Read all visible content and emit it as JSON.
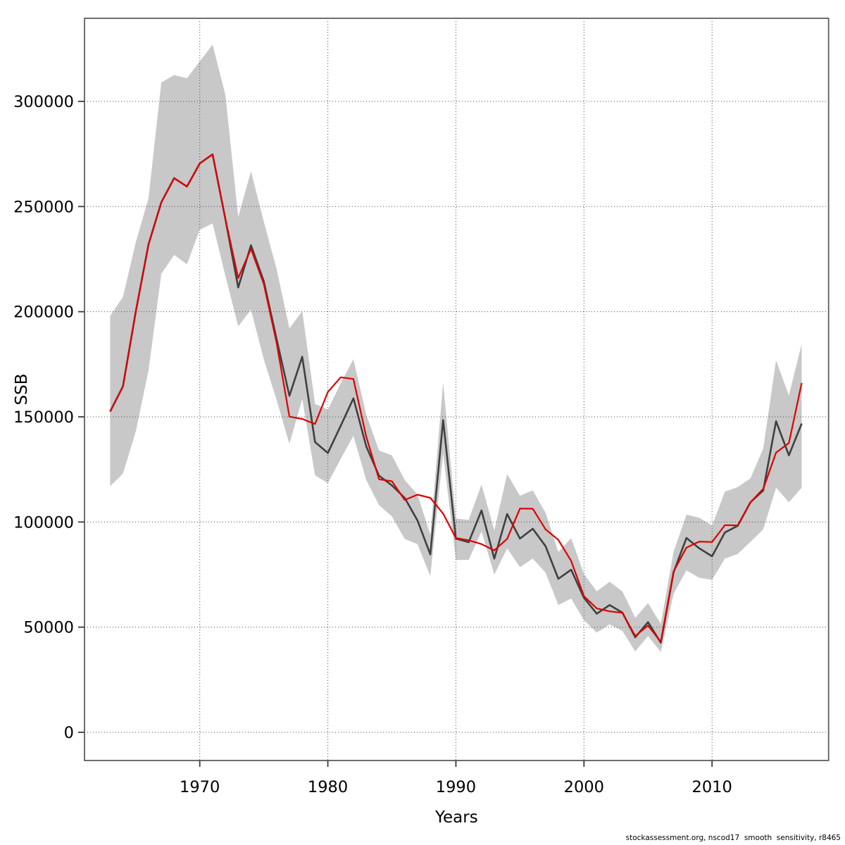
{
  "page": {
    "background": "#ffffff"
  },
  "footer": {
    "text": "stockassessment.org, nscod17  smooth  sensitivity, r8465"
  },
  "chart_data": {
    "type": "line",
    "title": "",
    "xlabel": "Years",
    "ylabel": "SSB",
    "grid": true,
    "legend": false,
    "xlim": [
      1961.0,
      2019.1
    ],
    "ylim": [
      -13400,
      339500
    ],
    "x_ticks": [
      1970,
      1980,
      1990,
      2000,
      2010
    ],
    "y_ticks": [
      0,
      50000,
      100000,
      150000,
      200000,
      250000,
      300000
    ],
    "years": [
      1963,
      1964,
      1965,
      1966,
      1967,
      1968,
      1969,
      1970,
      1971,
      1972,
      1973,
      1974,
      1975,
      1976,
      1977,
      1978,
      1979,
      1980,
      1981,
      1982,
      1983,
      1984,
      1985,
      1986,
      1987,
      1988,
      1989,
      1990,
      1991,
      1992,
      1993,
      1994,
      1995,
      1996,
      1997,
      1998,
      1999,
      2000,
      2001,
      2002,
      2003,
      2004,
      2005,
      2006,
      2007,
      2008,
      2009,
      2010,
      2011,
      2012,
      2013,
      2014,
      2015,
      2016,
      2017
    ],
    "series": [
      {
        "id": "base-run",
        "color": "#404040",
        "width": 2.6,
        "values": [
          152500,
          164500,
          200000,
          232000,
          252000,
          263500,
          259500,
          270500,
          274800,
          244000,
          211500,
          231600,
          214500,
          187000,
          160000,
          178600,
          138000,
          132800,
          145700,
          158800,
          136000,
          122000,
          117400,
          111500,
          100700,
          84600,
          148500,
          92100,
          90400,
          105500,
          82600,
          103800,
          92100,
          96800,
          88500,
          73000,
          77300,
          63900,
          56400,
          60500,
          56900,
          45200,
          52400,
          42600,
          76100,
          92400,
          87500,
          83700,
          95000,
          98200,
          109400,
          115000,
          147900,
          131700,
          146800
        ]
      },
      {
        "id": "sensitivity-run",
        "color": "#e00000",
        "width": 2.2,
        "values": [
          152500,
          164500,
          200000,
          232000,
          252000,
          263500,
          259500,
          270500,
          274800,
          244000,
          216000,
          229900,
          213200,
          185200,
          150100,
          149000,
          146600,
          161800,
          168800,
          168000,
          140600,
          120300,
          119400,
          110500,
          113000,
          111500,
          104000,
          92400,
          91300,
          89500,
          86500,
          92000,
          106400,
          106300,
          96500,
          91500,
          81500,
          64700,
          58900,
          57500,
          56800,
          45800,
          50800,
          43000,
          76500,
          87800,
          90700,
          90500,
          98500,
          98400,
          109400,
          115800,
          133000,
          137500,
          166100
        ]
      }
    ],
    "band": {
      "id": "confidence-band",
      "color": "#c8c8c8",
      "lower": [
        117000,
        123000,
        143000,
        172000,
        218000,
        227000,
        222500,
        239000,
        242000,
        217000,
        193000,
        201000,
        177400,
        158000,
        137200,
        158500,
        122200,
        118500,
        130000,
        141000,
        120000,
        108000,
        102700,
        92000,
        89500,
        74200,
        132600,
        82000,
        82000,
        95500,
        75000,
        87500,
        78500,
        82600,
        75900,
        60500,
        63600,
        53300,
        47400,
        51300,
        48200,
        38500,
        45800,
        38200,
        65900,
        77000,
        73500,
        72500,
        82600,
        84800,
        90600,
        96500,
        116300,
        109400,
        116300
      ],
      "upper": [
        198000,
        207000,
        233000,
        254000,
        309000,
        312500,
        311000,
        319000,
        327000,
        303000,
        245000,
        266800,
        242800,
        220400,
        192000,
        200300,
        156200,
        153400,
        166000,
        177400,
        151000,
        134000,
        131700,
        120000,
        113000,
        94000,
        166400,
        101600,
        101000,
        117800,
        96000,
        122800,
        112500,
        115000,
        104400,
        85700,
        92300,
        75300,
        67000,
        71600,
        67000,
        54500,
        61400,
        51600,
        85900,
        103500,
        102000,
        98300,
        114400,
        116600,
        120800,
        135000,
        176900,
        160100,
        184700
      ]
    }
  }
}
